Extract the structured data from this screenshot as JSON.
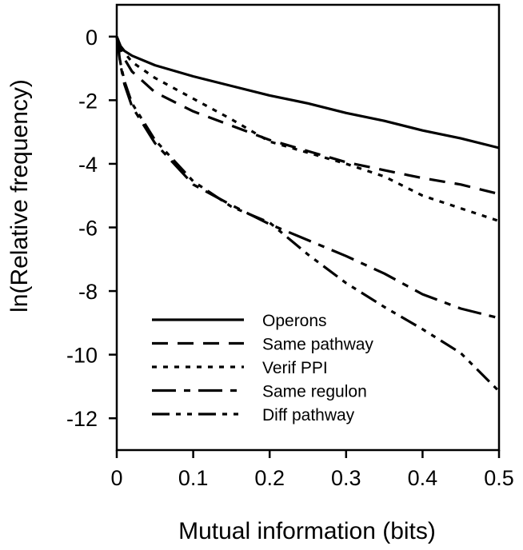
{
  "chart_data": {
    "type": "line",
    "title": "",
    "xlabel": "Mutual information (bits)",
    "ylabel": "ln(Relative frequency)",
    "xlim": [
      0,
      0.5
    ],
    "ylim": [
      -13,
      1
    ],
    "xticks": [
      0,
      0.1,
      0.2,
      0.3,
      0.4,
      0.5
    ],
    "xtick_labels": [
      "0",
      "0.1",
      "0.2",
      "0.3",
      "0.4",
      "0.5"
    ],
    "yticks": [
      0,
      -2,
      -4,
      -6,
      -8,
      -10,
      -12
    ],
    "ytick_labels": [
      "0",
      "-2",
      "-4",
      "-6",
      "-8",
      "-10",
      "-12"
    ],
    "grid": false,
    "legend_position": "bottom-center",
    "series": [
      {
        "name": "Operons",
        "dash": "solid",
        "points": [
          [
            0,
            0
          ],
          [
            0.005,
            -0.3
          ],
          [
            0.01,
            -0.45
          ],
          [
            0.02,
            -0.6
          ],
          [
            0.05,
            -0.9
          ],
          [
            0.1,
            -1.25
          ],
          [
            0.15,
            -1.55
          ],
          [
            0.2,
            -1.85
          ],
          [
            0.25,
            -2.1
          ],
          [
            0.3,
            -2.4
          ],
          [
            0.35,
            -2.65
          ],
          [
            0.4,
            -2.95
          ],
          [
            0.45,
            -3.2
          ],
          [
            0.5,
            -3.5
          ]
        ]
      },
      {
        "name": "Same pathway",
        "dash": "dashed",
        "points": [
          [
            0,
            0
          ],
          [
            0.005,
            -0.4
          ],
          [
            0.01,
            -0.7
          ],
          [
            0.02,
            -1.1
          ],
          [
            0.05,
            -1.75
          ],
          [
            0.1,
            -2.35
          ],
          [
            0.15,
            -2.8
          ],
          [
            0.2,
            -3.25
          ],
          [
            0.25,
            -3.6
          ],
          [
            0.3,
            -3.95
          ],
          [
            0.35,
            -4.2
          ],
          [
            0.4,
            -4.45
          ],
          [
            0.45,
            -4.65
          ],
          [
            0.5,
            -4.95
          ]
        ]
      },
      {
        "name": "Verif PPI",
        "dash": "dotted",
        "points": [
          [
            0,
            0
          ],
          [
            0.005,
            -0.3
          ],
          [
            0.01,
            -0.5
          ],
          [
            0.02,
            -0.8
          ],
          [
            0.05,
            -1.3
          ],
          [
            0.1,
            -1.95
          ],
          [
            0.15,
            -2.6
          ],
          [
            0.2,
            -3.3
          ],
          [
            0.25,
            -3.65
          ],
          [
            0.3,
            -4.0
          ],
          [
            0.35,
            -4.4
          ],
          [
            0.4,
            -5.0
          ],
          [
            0.45,
            -5.4
          ],
          [
            0.5,
            -5.8
          ]
        ]
      },
      {
        "name": "Same regulon",
        "dash": "dash-dot",
        "points": [
          [
            0,
            0
          ],
          [
            0.005,
            -0.9
          ],
          [
            0.01,
            -1.5
          ],
          [
            0.02,
            -2.2
          ],
          [
            0.05,
            -3.35
          ],
          [
            0.1,
            -4.65
          ],
          [
            0.15,
            -5.3
          ],
          [
            0.2,
            -5.9
          ],
          [
            0.25,
            -6.4
          ],
          [
            0.3,
            -6.9
          ],
          [
            0.35,
            -7.45
          ],
          [
            0.4,
            -8.1
          ],
          [
            0.45,
            -8.55
          ],
          [
            0.5,
            -8.85
          ]
        ]
      },
      {
        "name": "Diff pathway",
        "dash": "dash-dot-dot",
        "points": [
          [
            0,
            0
          ],
          [
            0.005,
            -0.85
          ],
          [
            0.01,
            -1.4
          ],
          [
            0.02,
            -2.1
          ],
          [
            0.05,
            -3.25
          ],
          [
            0.1,
            -4.55
          ],
          [
            0.15,
            -5.35
          ],
          [
            0.2,
            -5.85
          ],
          [
            0.25,
            -6.85
          ],
          [
            0.3,
            -7.75
          ],
          [
            0.35,
            -8.5
          ],
          [
            0.4,
            -9.2
          ],
          [
            0.45,
            -9.95
          ],
          [
            0.5,
            -11.15
          ]
        ]
      }
    ]
  }
}
